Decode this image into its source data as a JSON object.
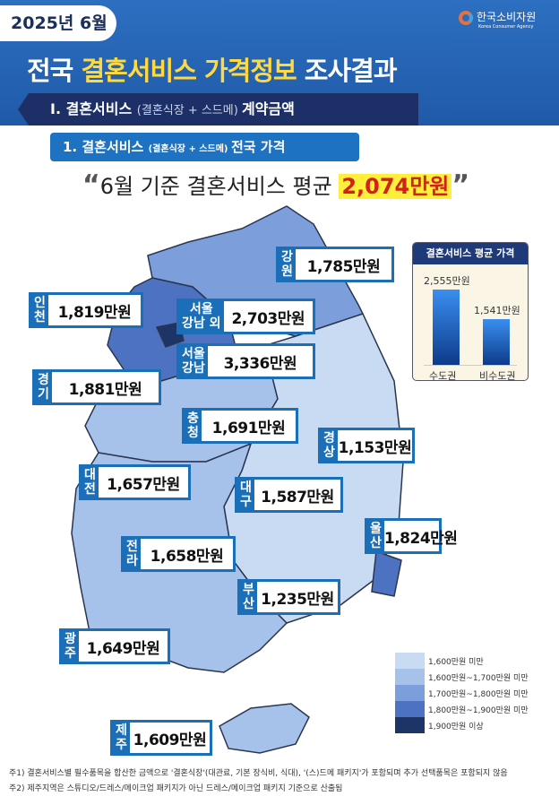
{
  "header": {
    "date": "2025년 6월",
    "logo_kr": "한국소비자원",
    "logo_en": "Korea Consumer Agency",
    "title_pre": "전국 ",
    "title_hl": "결혼서비스 가격정보",
    "title_post": " 조사결과"
  },
  "section1": {
    "main": "Ⅰ. 결혼서비스 ",
    "sub": "(결혼식장 + 스드메) ",
    "tail": "계약금액"
  },
  "section2": {
    "main": "1. 결혼서비스 ",
    "sub": "(결혼식장 + 스드메) ",
    "tail": "전국 가격"
  },
  "average": {
    "open": "“",
    "text": "6월 기준 결혼서비스 평균 ",
    "value": "2,074만원",
    "close": "”"
  },
  "regions": [
    {
      "name1": "강",
      "name2": "원",
      "value": "1,785만원"
    },
    {
      "name1": "인",
      "name2": "천",
      "value": "1,819만원"
    },
    {
      "name1": "서울",
      "name2": "강남 외",
      "value": "2,703만원"
    },
    {
      "name1": "서울",
      "name2": "강남",
      "value": "3,336만원"
    },
    {
      "name1": "경",
      "name2": "기",
      "value": "1,881만원"
    },
    {
      "name1": "충",
      "name2": "청",
      "value": "1,691만원"
    },
    {
      "name1": "경",
      "name2": "상",
      "value": "1,153만원"
    },
    {
      "name1": "대",
      "name2": "전",
      "value": "1,657만원"
    },
    {
      "name1": "대",
      "name2": "구",
      "value": "1,587만원"
    },
    {
      "name1": "울",
      "name2": "산",
      "value": "1,824만원"
    },
    {
      "name1": "전",
      "name2": "라",
      "value": "1,658만원"
    },
    {
      "name1": "부",
      "name2": "산",
      "value": "1,235만원"
    },
    {
      "name1": "광",
      "name2": "주",
      "value": "1,649만원"
    },
    {
      "name1": "제",
      "name2": "주",
      "value": "1,609만원"
    }
  ],
  "chart_data": {
    "type": "bar",
    "title": "결혼서비스 평균 가격",
    "categories": [
      "수도권",
      "비수도권"
    ],
    "values": [
      2555,
      1541
    ],
    "value_labels": [
      "2,555만원",
      "1,541만원"
    ],
    "unit": "만원"
  },
  "legend": [
    {
      "label": "1,600만원 미만",
      "color": "#c9dbf2"
    },
    {
      "label": "1,600만원~1,700만원 미만",
      "color": "#a7c2ea"
    },
    {
      "label": "1,700만원~1,800만원 미만",
      "color": "#7c9fdc"
    },
    {
      "label": "1,800만원~1,900만원 미만",
      "color": "#4d72c2"
    },
    {
      "label": "1,900만원 이상",
      "color": "#1d3566"
    }
  ],
  "notes": [
    "주1) 결혼서비스별 필수품목을 합산한 금액으로 '결혼식장'(대관료, 기본 장식비, 식대), '(스)드메 패키지'가 포함되며 추가 선택품목은 포함되지 않음",
    "주2) 제주지역은 스튜디오/드레스/메이크업 패키지가 아닌 드레스/메이크업 패키지 기준으로 산출됨"
  ]
}
